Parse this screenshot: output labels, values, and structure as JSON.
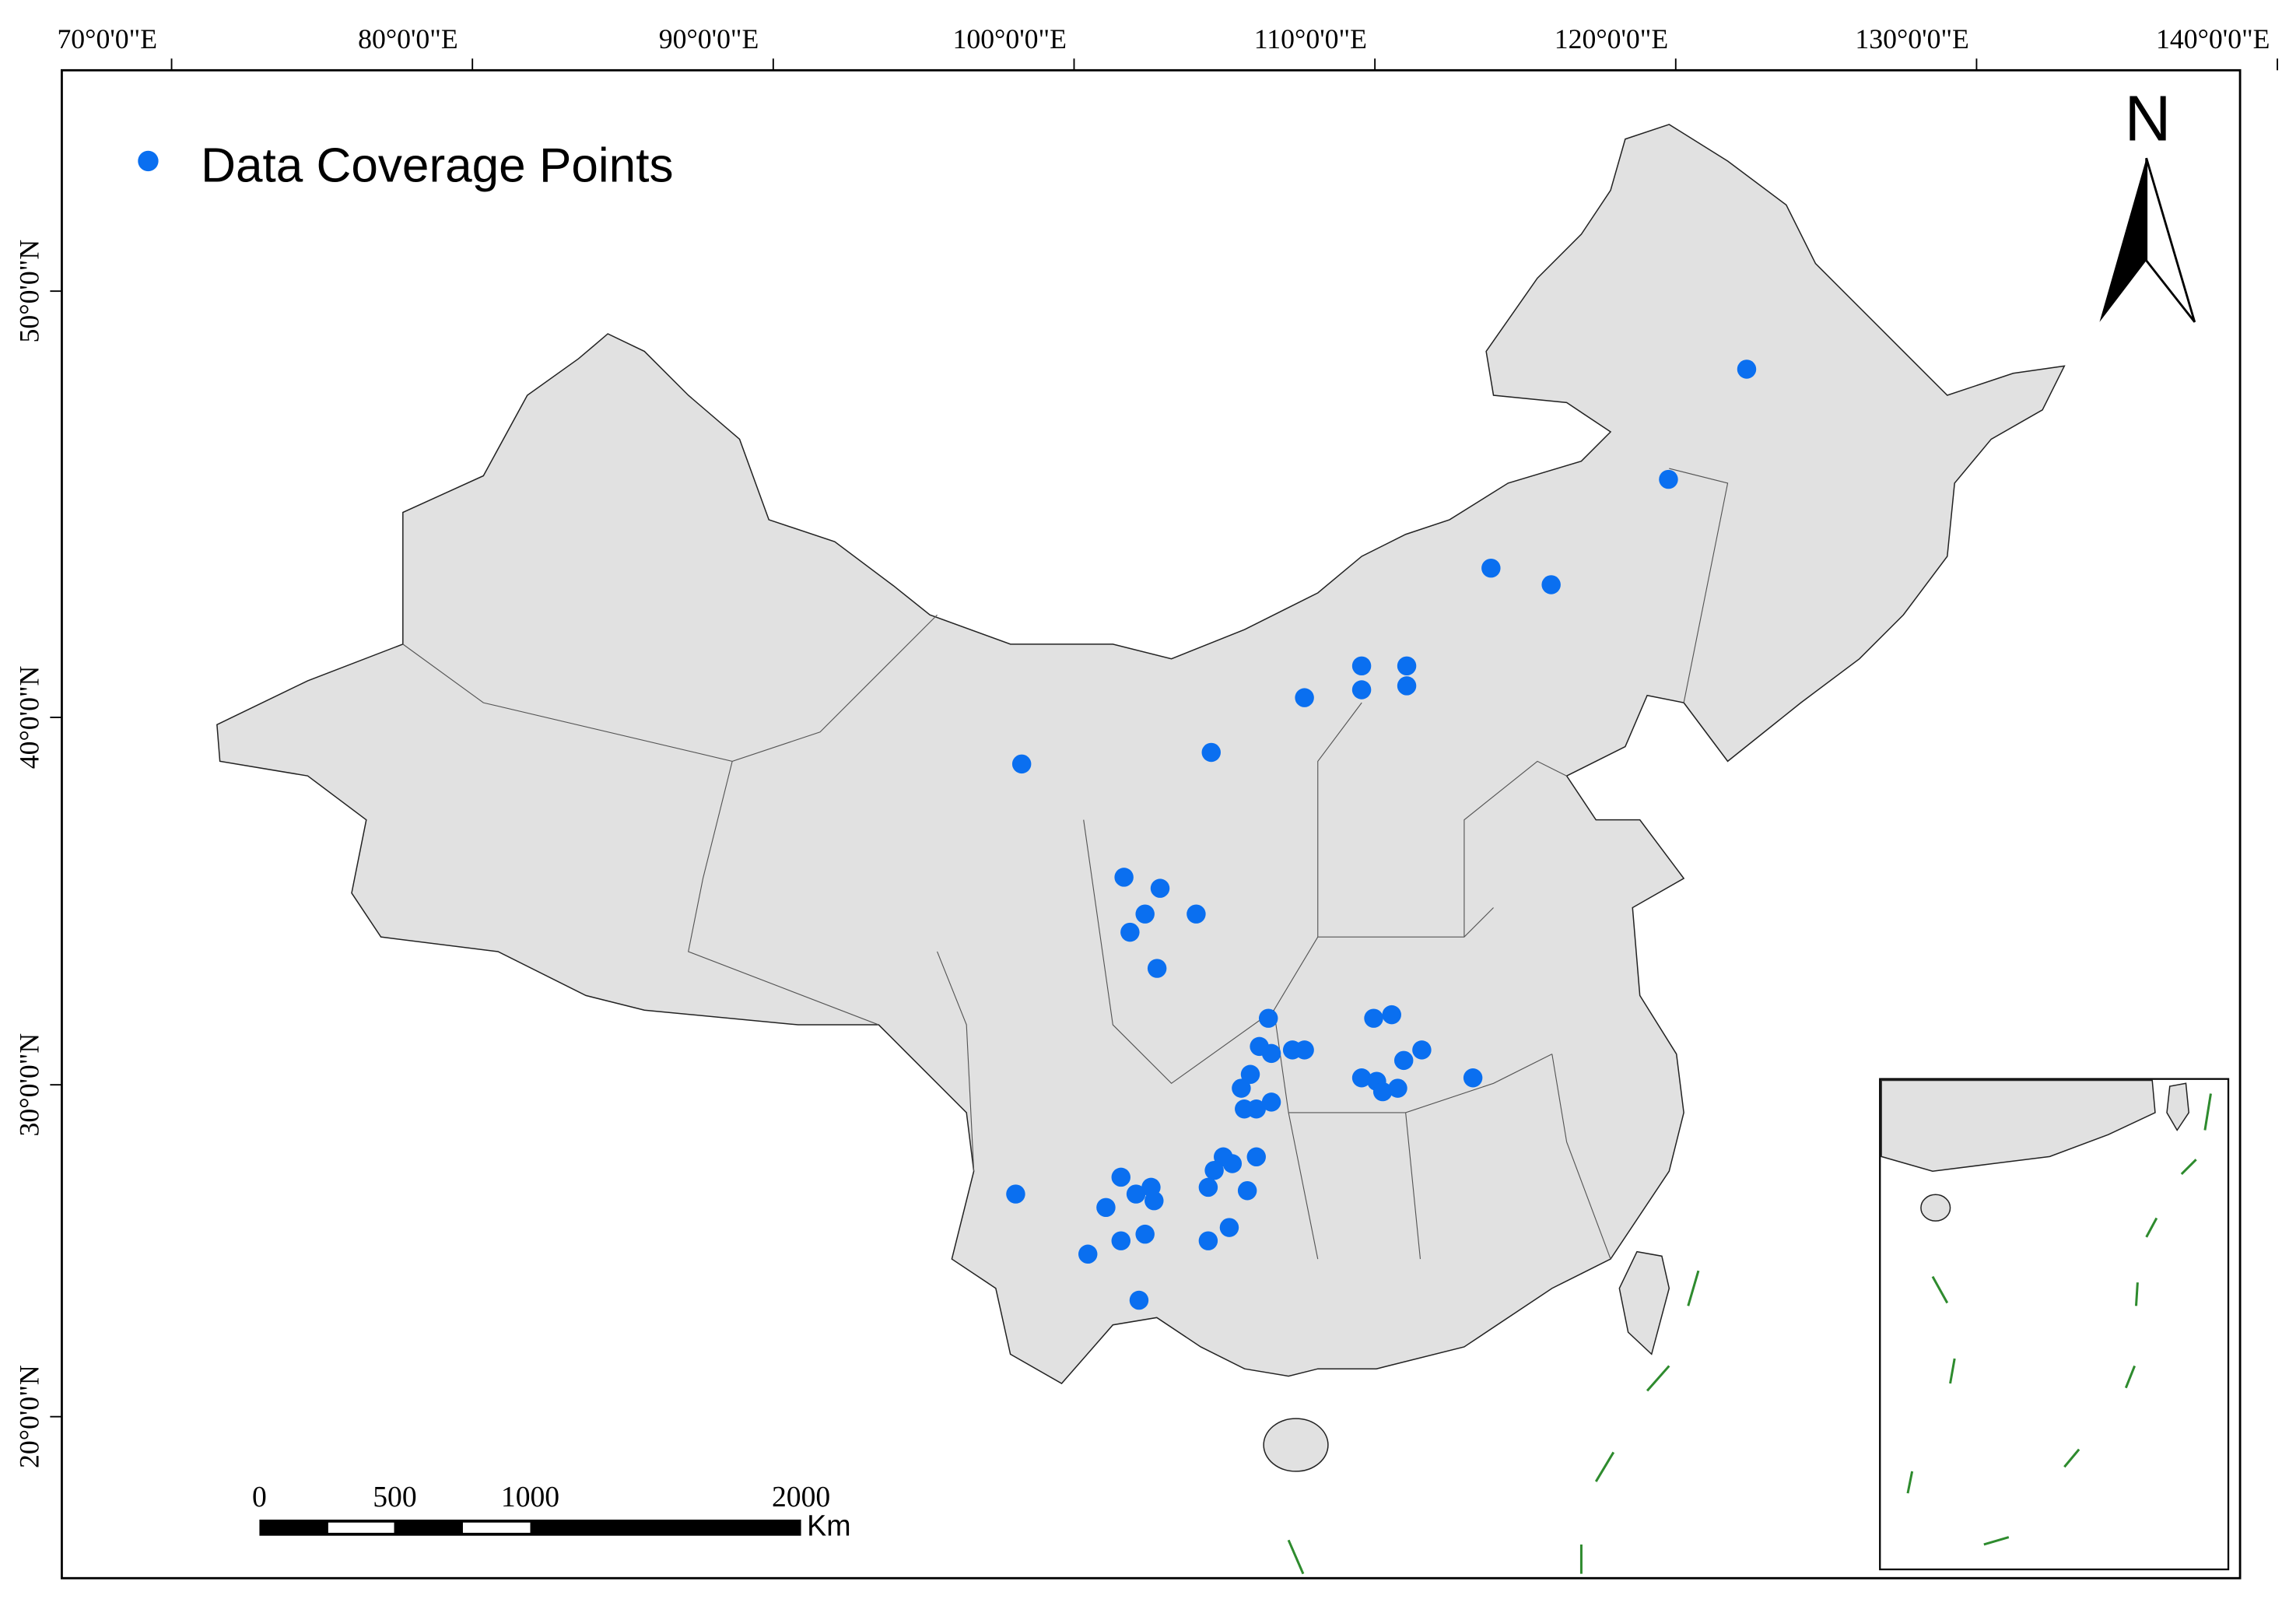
{
  "map": {
    "legend": {
      "label": "Data Coverage Points",
      "color": "#0a6ff0"
    },
    "north_label": "N",
    "lon_ticks": [
      {
        "value": 70,
        "label": "70°0'0\"E"
      },
      {
        "value": 80,
        "label": "80°0'0\"E"
      },
      {
        "value": 90,
        "label": "90°0'0\"E"
      },
      {
        "value": 100,
        "label": "100°0'0\"E"
      },
      {
        "value": 110,
        "label": "110°0'0\"E"
      },
      {
        "value": 120,
        "label": "120°0'0\"E"
      },
      {
        "value": 130,
        "label": "130°0'0\"E"
      },
      {
        "value": 140,
        "label": "140°0'0\"E"
      }
    ],
    "lat_ticks": [
      {
        "value": 20,
        "label": "20°0'0\"N"
      },
      {
        "value": 30,
        "label": "30°0'0\"N"
      },
      {
        "value": 40,
        "label": "40°0'0\"N"
      },
      {
        "value": 50,
        "label": "50°0'0\"N"
      }
    ],
    "scale_bar": {
      "ticks": [
        0,
        500,
        1000,
        2000
      ],
      "unit": "Km"
    },
    "points": {
      "lon": [
        124.5,
        121.9,
        116.0,
        118.0,
        111.7,
        113.2,
        111.7,
        113.2,
        109.8,
        100.4,
        106.7,
        103.8,
        105.0,
        104.5,
        106.2,
        104.0,
        104.9,
        108.6,
        112.1,
        112.7,
        108.3,
        108.7,
        109.4,
        109.8,
        113.7,
        113.1,
        108.0,
        111.7,
        112.2,
        112.4,
        112.9,
        115.4,
        107.7,
        107.8,
        108.2,
        108.7,
        107.1,
        107.4,
        108.2,
        106.8,
        106.6,
        107.9,
        103.7,
        104.7,
        104.2,
        104.8,
        103.2,
        100.2,
        103.7,
        104.5,
        106.6,
        107.3,
        102.6,
        104.3
      ],
      "lat": [
        48.3,
        45.8,
        43.7,
        43.3,
        41.3,
        41.3,
        40.7,
        40.8,
        40.5,
        38.8,
        39.1,
        35.8,
        35.5,
        34.8,
        34.8,
        34.3,
        33.3,
        31.9,
        31.9,
        32.0,
        31.1,
        30.9,
        31.0,
        31.0,
        31.0,
        30.7,
        30.3,
        30.2,
        30.1,
        29.8,
        29.9,
        30.2,
        29.9,
        29.3,
        29.3,
        29.5,
        27.9,
        27.7,
        27.9,
        27.5,
        27.0,
        26.9,
        27.3,
        27.0,
        26.8,
        26.6,
        26.4,
        26.8,
        25.4,
        25.6,
        25.4,
        25.8,
        25.0,
        23.6
      ]
    }
  }
}
